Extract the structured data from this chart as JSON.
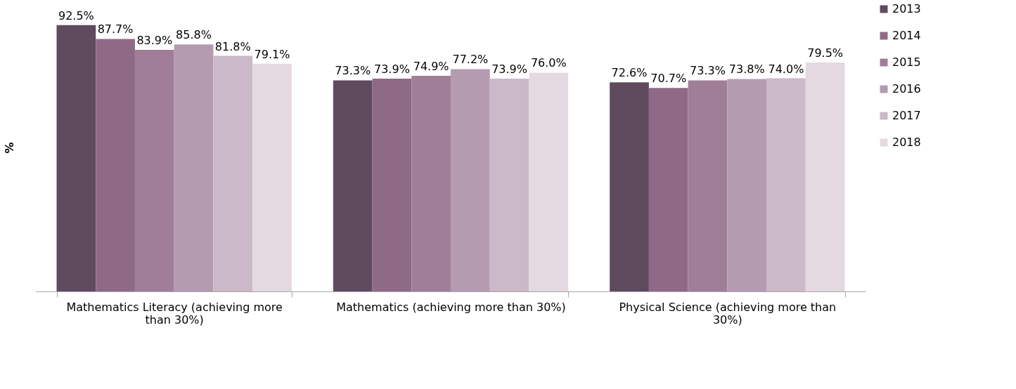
{
  "chart_data": {
    "type": "bar",
    "ylabel": "%",
    "categories": [
      "Mathematics Literacy (achieving more than 30%)",
      "Mathematics (achieving more than 30%)",
      "Physical Science (achieving more than 30%)"
    ],
    "series": [
      {
        "name": "2013",
        "color": "#604a5e",
        "values": [
          92.5,
          73.3,
          72.6
        ],
        "value_labels": [
          "92.5%",
          "73.3%",
          "72.6%"
        ]
      },
      {
        "name": "2014",
        "color": "#8f6a87",
        "values": [
          87.7,
          73.9,
          70.7
        ],
        "value_labels": [
          "87.7%",
          "73.9%",
          "70.7%"
        ]
      },
      {
        "name": "2015",
        "color": "#a07e97",
        "values": [
          83.9,
          74.9,
          73.3
        ],
        "value_labels": [
          "83.9%",
          "74.9%",
          "73.3%"
        ]
      },
      {
        "name": "2016",
        "color": "#b59bb0",
        "values": [
          85.8,
          77.2,
          73.8
        ],
        "value_labels": [
          "85.8%",
          "77.2%",
          "73.8%"
        ]
      },
      {
        "name": "2017",
        "color": "#cbb8c8",
        "values": [
          81.8,
          73.9,
          74.0
        ],
        "value_labels": [
          "81.8%",
          "73.9%",
          "74.0%"
        ]
      },
      {
        "name": "2018",
        "color": "#e4d9e1",
        "values": [
          79.1,
          76.0,
          79.5
        ],
        "value_labels": [
          "79.1%",
          "76.0%",
          "79.5%"
        ]
      }
    ],
    "tick_labels": "x",
    "legend": "right",
    "grid": false
  }
}
